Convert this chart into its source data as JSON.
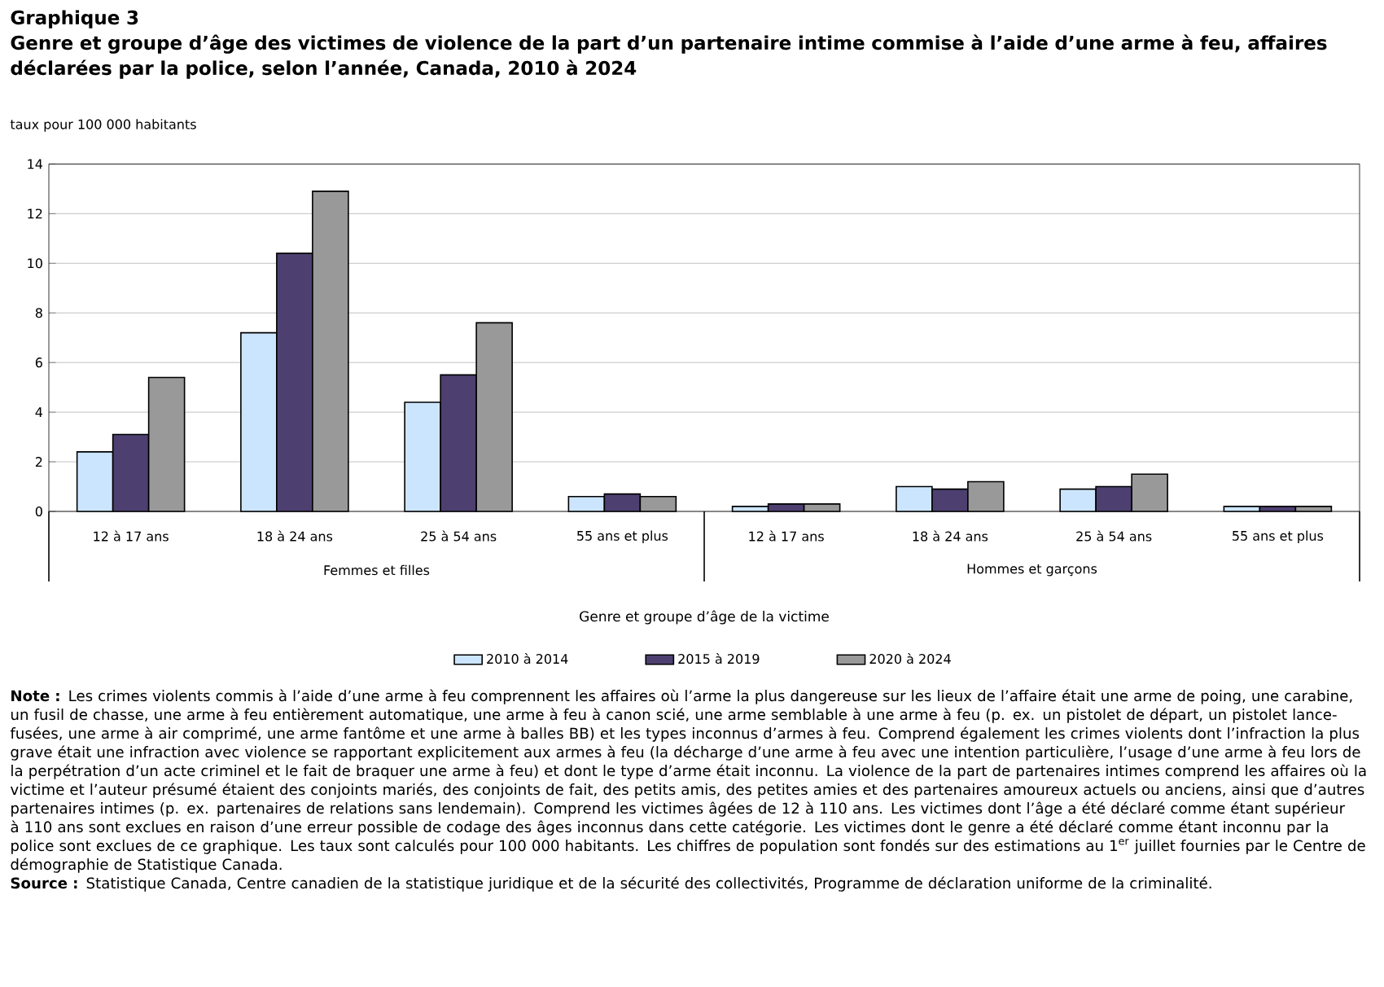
{
  "chart_data": {
    "type": "bar",
    "title": "Graphique 3",
    "subtitle": "Genre et groupe d’âge des victimes de violence de la part d’un partenaire intime commise à l’aide d’une arme à feu, affaires déclarées par la police, selon l’année, Canada, 2010 à 2024",
    "ylabel": "taux pour 100 000 habitants",
    "xlabel": "Genre et groupe d’âge de la victime",
    "categories": [
      "12 à 17 ans",
      "18 à 24 ans",
      "25 à 54 ans",
      "55 ans et plus",
      "12 à 17 ans",
      "18 à 24 ans",
      "25 à 54 ans",
      "55 ans et plus"
    ],
    "series": [
      {
        "name": "2010 à 2014",
        "color": "#cce5ff",
        "values": [
          2.4,
          7.2,
          4.4,
          0.6,
          0.2,
          1.0,
          0.9,
          0.2
        ]
      },
      {
        "name": "2015 à 2019",
        "color": "#4d4070",
        "values": [
          3.1,
          10.4,
          5.5,
          0.7,
          0.3,
          0.9,
          1.0,
          0.2
        ]
      },
      {
        "name": "2020 à 2024",
        "color": "#999999",
        "values": [
          5.4,
          12.9,
          7.6,
          0.6,
          0.3,
          1.2,
          1.5,
          0.2
        ]
      }
    ],
    "ylim": [
      0,
      14
    ],
    "yticks": [
      0,
      2,
      4,
      6,
      8,
      10,
      12,
      14
    ],
    "grid": "y",
    "legend": "bottom",
    "annotations": [
      "Femmes et filles",
      "Hommes et garçons",
      "**Note :** Les crimes violents commis à l’aide d’une arme à feu comprennent les affaires où l’arme la plus dangereuse sur les lieux de l’affaire était une arme de poing, une carabine, un fusil de chasse, une arme à feu entièrement automatique, une arme à feu à canon scié, une arme semblable à une arme à feu (p. ex. un pistolet de départ, un pistolet lance-fusées, une arme à air comprimé, une arme fantôme et une arme à balles BB) et les types inconnus d’armes à feu. Comprend également les crimes violents dont l’infraction la plus grave était une infraction avec violence se rapportant explicitement aux armes à feu (la décharge d’une arme à feu avec une intention particulière, l’usage d’une arme à feu lors de la perpétration d’un acte criminel et le fait de braquer une arme à feu) et dont le type d’arme était inconnu. La violence de la part de partenaires intimes comprend les affaires où la victime et l’auteur présumé étaient des conjoints mariés, des conjoints de fait, des petits amis, des petites amies et des partenaires amoureux actuels ou anciens, ainsi que d’autres partenaires intimes (p. ex. partenaires de relations sans lendemain). Comprend les victimes âgées de 12 à 110 ans. Les victimes dont l’âge a été déclaré comme étant supérieur à 110 ans sont exclues en raison d’une erreur possible de codage des âges inconnus dans cette catégorie. Les victimes dont le genre a été déclaré comme étant inconnu par la police sont exclues de ce graphique. Les taux sont calculés pour 100 000 habitants. Les chiffres de population sont fondés sur des estimations au 1$^{er}$ juillet fournies par le Centre de démographie de Statistique Canada.",
      "**Source :** Statistique Canada, Centre canadien de la statistique juridique et de la sécurité des collectivités, Programme de déclaration uniforme de la criminalité."
    ]
  }
}
